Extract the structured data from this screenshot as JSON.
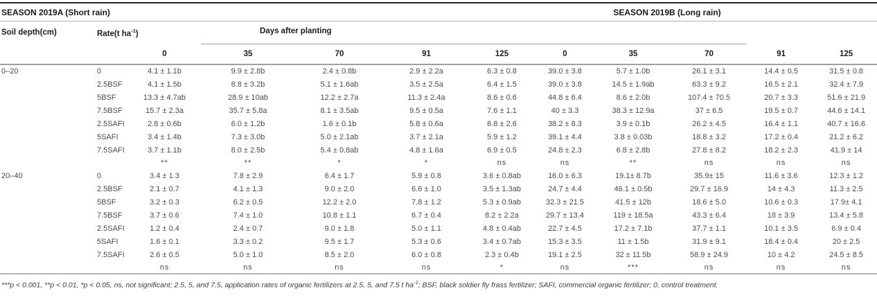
{
  "page": {
    "season_a_title": "SEASON 2019A (Short rain)",
    "season_b_title": "SEASON 2019B (Long rain)"
  },
  "table": {
    "soil_depth_header": "Soil depth(cm)",
    "rate_header_prefix": "Rate(t ha",
    "rate_header_sup": "-1",
    "rate_header_suffix": ")",
    "days_after_planting_header": "Days after planting",
    "day_columns": [
      "0",
      "35",
      "70",
      "91",
      "125",
      "0",
      "35",
      "70",
      "91",
      "125"
    ],
    "sections": [
      {
        "depth": "0–20",
        "rows": [
          {
            "rate": "0",
            "values": [
              "4.1 ± 1.1b",
              "9.9 ± 2.8b",
              "2.4 ± 0.8b",
              "2.9 ± 2.2a",
              "6.3 ± 0.8",
              "39.0 ± 3.8",
              "5.7 ± 1.0b",
              "26.1 ± 3.1",
              "14.4 ± 0.5",
              "31.5 ± 0.8"
            ]
          },
          {
            "rate": "2.5BSF",
            "values": [
              "4.1 ± 1.5b",
              "8.8 ± 3.2b",
              "5.1 ± 1.6ab",
              "3.5 ± 2.5a",
              "6.4 ± 1.5",
              "39.0 ± 3.8",
              "14.5 ± 1.9ab",
              "63.3 ± 9.2",
              "16.5 ± 2.1",
              "32.4 ± 7.9"
            ]
          },
          {
            "rate": "5BSF",
            "values": [
              "13.3 ± 4.7ab",
              "28.9 ± 10ab",
              "12.2 ± 2.7a",
              "11.3 ± 2.4a",
              "8.6 ± 0.6",
              "44.8 ± 6.4",
              "8.6 ± 2.0b",
              "107.4 ± 70.5",
              "20.7 ± 3.3",
              "51.6 ± 21.9"
            ]
          },
          {
            "rate": "7.5BSF",
            "values": [
              "15.7 ± 2.3a",
              "35.7 ± 5.8a",
              "8.1 ± 3.5ab",
              "9.5 ± 0.5a",
              "7.6 ± 1.1",
              "40 ± 3.3",
              "38.3 ± 12.9a",
              "37 ± 6.5",
              "19.5 ± 0.7",
              "44.6 ± 14.1"
            ]
          },
          {
            "rate": "2.5SAFI",
            "values": [
              "2.8 ± 0.6b",
              "6.0 ± 1.2b",
              "1.6 ± 0.1b",
              "5.8 ± 0.6a",
              "8.8 ± 2.6",
              "38.2 ± 8.3",
              "3.9 ± 0.1b",
              "26.2 ± 4.5",
              "16.4 ± 1.1",
              "40.7 ± 16.6"
            ]
          },
          {
            "rate": "5SAFI",
            "values": [
              "3.4 ± 1.4b",
              "7.3 ± 3.0b",
              "5.0 ± 2.1ab",
              "3.7 ± 2.1a",
              "5.9 ± 1.2",
              "39.1 ± 4.4",
              "3.8 ± 0.03b",
              "18.8 ± 3.2",
              "17.2 ± 0.4",
              "21.2 ± 6.2"
            ]
          },
          {
            "rate": "7.5SAFI",
            "values": [
              "3.7 ± 1.1b",
              "8.0 ± 2.5b",
              "5.4 ± 0.8ab",
              "4.8 ± 1.6a",
              "6.9 ± 0.5",
              "24.8 ± 2.3",
              "6.8 ± 2.8b",
              "27.8 ± 8.2",
              "18.2 ± 2.3",
              "41.9 ± 14"
            ]
          }
        ],
        "significance": [
          "**",
          "**",
          "*",
          "*",
          "ns",
          "ns",
          "**",
          "ns",
          "ns",
          "ns"
        ]
      },
      {
        "depth": "20–40",
        "rows": [
          {
            "rate": "0",
            "values": [
              "3.4 ± 1.3",
              "7.8 ± 2.9",
              "6.4 ± 1.7",
              "5.9 ± 0.8",
              "3.6 ± 0.8ab",
              "16.0 ± 6.3",
              "19.1± 8.7b",
              "35.9± 15",
              "11.6 ± 3.6",
              "12.3 ± 1.2"
            ]
          },
          {
            "rate": "2.5BSF",
            "values": [
              "2.1 ± 0.7",
              "4.1 ± 1.3",
              "9.0 ± 2.0",
              "6.6 ± 1.0",
              "3.5 ± 1.3ab",
              "24.7 ± 4.4",
              "46.1 ± 0.5b",
              "29.7 ± 16.9",
              "14 ± 4.3",
              "11.3 ± 2.5"
            ]
          },
          {
            "rate": "5BSF",
            "values": [
              "3.2 ± 0.3",
              "6.2 ± 0.5",
              "12.2 ± 2.0",
              "7.8 ± 1.2",
              "5.3 ± 0.9ab",
              "32.3 ± 21.5",
              "41.5 ± 12b",
              "18.6 ± 5.0",
              "10.6 ± 0.3",
              "17.9± 4.1"
            ]
          },
          {
            "rate": "7.5BSF",
            "values": [
              "3.7 ± 0.6",
              "7.4 ± 1.0",
              "10.8 ± 1.1",
              "6.7 ± 0.4",
              "8.2 ± 2.2a",
              "29.7 ± 13.4",
              "119 ± 18.5a",
              "43.3 ± 6.4",
              "18 ± 3.9",
              "13.4 ± 5.8"
            ]
          },
          {
            "rate": "2.5SAFI",
            "values": [
              "1.2 ± 0.4",
              "2.4 ± 0.7",
              "9.0 ± 1.8",
              "5.0 ± 1.1",
              "4.8 ± 0.4ab",
              "22.7 ± 4.5",
              "17.2 ± 7.1b",
              "37.7 ± 1.1",
              "10.1 ± 3.5",
              "6.9 ± 0.4"
            ]
          },
          {
            "rate": "5SAFI",
            "values": [
              "1.6 ± 0.1",
              "3.3 ± 0.2",
              "9.5 ± 1.7",
              "5.3 ± 0.6",
              "3.4 ± 0.7ab",
              "15.3 ± 3.5",
              "11 ± 1.5b",
              "31.9 ± 9.1",
              "18.4 ± 0.4",
              "20 ± 2.5"
            ]
          },
          {
            "rate": "7.5SAFI",
            "values": [
              "2.6 ± 0.5",
              "5.0 ± 1.0",
              "8.5 ± 2.0",
              "6.0 ± 0.8",
              "2.3 ± 0.4b",
              "19.1 ± 2.5",
              "32 ± 11.5b",
              "58.9 ± 24.9",
              "10 ± 4.2",
              "24.5 ± 8.5"
            ]
          }
        ],
        "significance": [
          "ns",
          "ns",
          "ns",
          "ns",
          "*",
          "ns",
          "***",
          "ns",
          "ns",
          "ns"
        ]
      }
    ]
  },
  "footnote": {
    "part1": "***p < 0.001, **p < 0.01, *p < 0.05, ns, not significant; 2.5, 5, and 7.5, application rates of organic fertilizers at 2.5, 5, and 7.5 t ha",
    "sup": "-1",
    "part2": "; BSF, black soldier fly frass fertilizer; SAFI, commercial organic fertilizer; 0, control treatment."
  }
}
